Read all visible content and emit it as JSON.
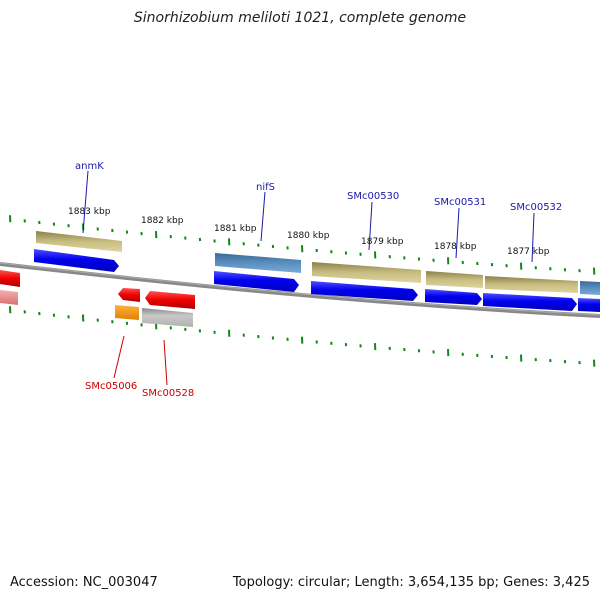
{
  "title": "Sinorhizobium meliloti 1021, complete genome",
  "footer": {
    "accession": "Accession: NC_003047",
    "summary": "Topology: circular; Length: 3,654,135 bp; Genes: 3,425"
  },
  "kbp_labels": [
    "1883 kbp",
    "1882 kbp",
    "1881 kbp",
    "1880 kbp",
    "1879 kbp",
    "1878 kbp",
    "1877 kbp"
  ],
  "gene_labels_top": [
    "anmK",
    "nifS",
    "SMc00530",
    "SMc00531",
    "SMc00532"
  ],
  "gene_labels_bottom": [
    "SMc05006",
    "SMc00528"
  ],
  "colors": {
    "blue_cds": "#0000ee",
    "steel_cds": "#4a7fb0",
    "olive_cds": "#c8bd80",
    "red_cds": "#ee0000",
    "pink_cds": "#e89090",
    "orange_cds": "#ff9900",
    "gray_cds": "#c0c0c0",
    "tick": "#118811",
    "backbone": "#888888",
    "top_label": "#1a1aa8",
    "bottom_label": "#cc0000"
  }
}
